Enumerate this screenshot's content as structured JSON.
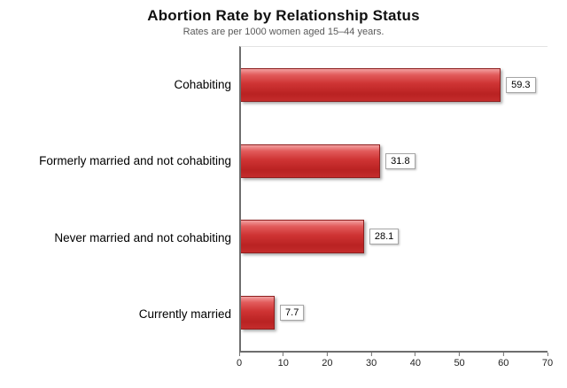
{
  "chart_data": {
    "type": "bar",
    "orientation": "horizontal",
    "title": "Abortion Rate by Relationship Status",
    "subtitle": "Rates are per 1000 women aged 15–44 years.",
    "categories": [
      "Cohabiting",
      "Formerly married and not cohabiting",
      "Never married and not cohabiting",
      "Currently married"
    ],
    "values": [
      59.3,
      31.8,
      28.1,
      7.7
    ],
    "value_labels": [
      "59.3",
      "31.8",
      "28.1",
      "7.7"
    ],
    "xlabel": "",
    "ylabel": "",
    "xlim": [
      0,
      70
    ],
    "x_ticks": [
      0,
      10,
      20,
      30,
      40,
      50,
      60,
      70
    ],
    "grid": false,
    "legend": false,
    "bar_color": "#cf3434",
    "bar_border_color": "#8e1f1f",
    "value_box_border_color": "#a6a6a6",
    "axis_color": "#6e6e6e"
  }
}
